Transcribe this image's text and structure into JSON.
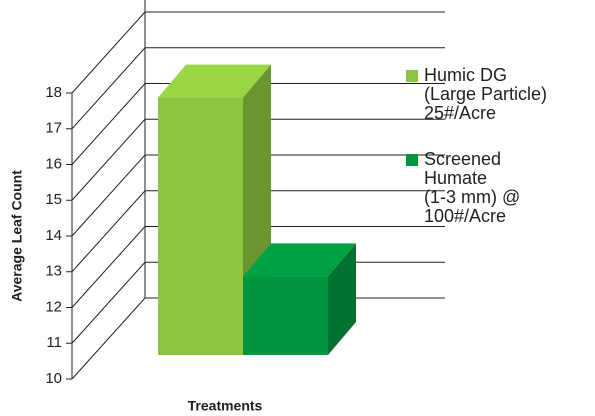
{
  "chart_data": {
    "type": "bar3d",
    "xlabel": "Treatments",
    "ylabel": "Average Leaf Count",
    "ylim": [
      10,
      18
    ],
    "yticks": [
      10,
      11,
      12,
      13,
      14,
      15,
      16,
      17,
      18
    ],
    "grid": true,
    "series": [
      {
        "name": "Humic DG\n(Large Particle)\n25#/Acre",
        "color": "#8dc63f",
        "values": [
          17.2
        ]
      },
      {
        "name": "Screened\nHumate\n(1-3 mm) @\n100#/Acre",
        "color": "#00963f",
        "values": [
          12.2
        ]
      }
    ]
  }
}
